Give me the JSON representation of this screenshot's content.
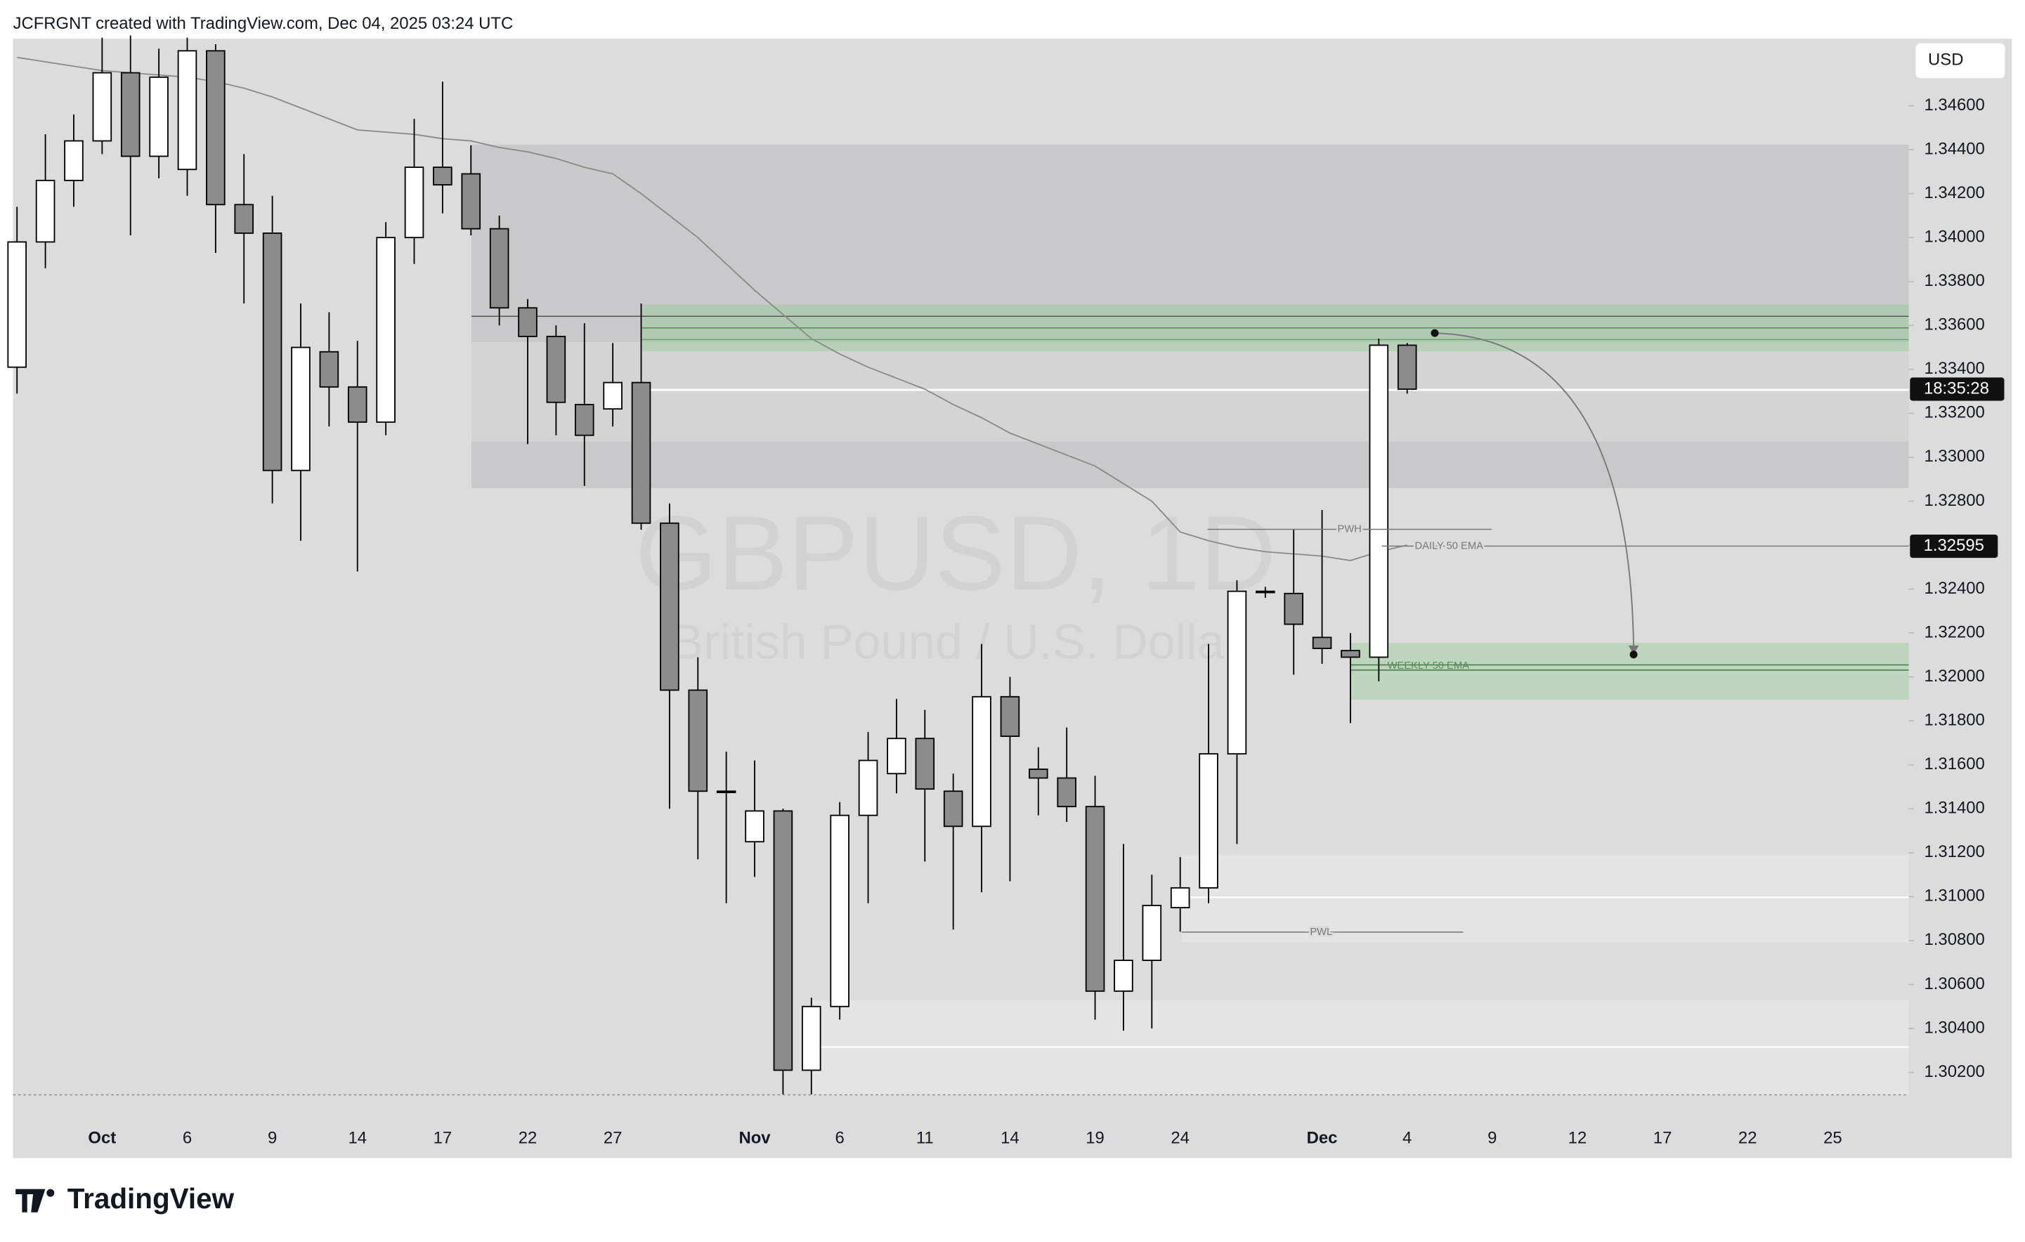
{
  "header": "JCFRGNT created with TradingView.com, Dec 04, 2025 03:24 UTC",
  "brand": "TradingView",
  "chart_data": {
    "type": "candlestick",
    "watermark": "GBPUSD, 1D",
    "subtitle": "British Pound / U.S. Dollar",
    "currency": "USD",
    "categories": [
      null,
      null,
      null,
      "Oct",
      null,
      null,
      "6",
      null,
      null,
      "9",
      null,
      null,
      "14",
      null,
      null,
      "17",
      null,
      null,
      "22",
      null,
      null,
      "27",
      null,
      null,
      null,
      null,
      "Nov",
      null,
      null,
      "6",
      null,
      null,
      "11",
      null,
      null,
      "14",
      null,
      null,
      "19",
      null,
      null,
      "24",
      null,
      null,
      null,
      null,
      "Dec",
      null,
      null,
      "4",
      null,
      null,
      "9",
      null,
      null,
      "12",
      null,
      null,
      "17",
      null,
      null,
      "22",
      null,
      null,
      "25"
    ],
    "open": [
      1.3341,
      1.3398,
      1.3426,
      1.3444,
      1.3475,
      1.3437,
      1.3431,
      1.3485,
      1.3415,
      1.3402,
      1.3294,
      1.3348,
      1.3332,
      1.3316,
      1.34,
      1.3432,
      1.3429,
      1.3404,
      1.3368,
      1.3355,
      1.3324,
      1.3322,
      1.3334,
      1.327,
      1.3194,
      1.3148,
      1.3125,
      1.3139,
      1.3021,
      1.305,
      1.3137,
      1.3156,
      1.3172,
      1.3148,
      1.3132,
      1.3191,
      1.3158,
      1.3154,
      1.3141,
      1.3057,
      1.3071,
      1.3095,
      1.3104,
      1.3165,
      1.3239,
      1.3238,
      1.3218,
      1.3212,
      1.3209,
      1.3351,
      null,
      null,
      null,
      null,
      null,
      null,
      null,
      null,
      null,
      null,
      null,
      null,
      null,
      null,
      null
    ],
    "high": [
      1.3414,
      1.3447,
      1.3456,
      1.3491,
      1.3492,
      1.3486,
      1.3491,
      1.3488,
      1.3438,
      1.3419,
      1.337,
      1.3366,
      1.3353,
      1.3407,
      1.3454,
      1.3471,
      1.3442,
      1.341,
      1.3372,
      1.336,
      1.3361,
      1.3352,
      1.337,
      1.3279,
      1.3209,
      1.3166,
      1.3162,
      1.314,
      1.3054,
      1.3143,
      1.3175,
      1.319,
      1.3185,
      1.3156,
      1.3215,
      1.32,
      1.3168,
      1.3177,
      1.3155,
      1.3124,
      1.311,
      1.3118,
      1.3215,
      1.3244,
      1.3241,
      1.3267,
      1.3276,
      1.322,
      1.3354,
      1.3352,
      null,
      null,
      null,
      null,
      null,
      null,
      null,
      null,
      null,
      null,
      null,
      null,
      null,
      null,
      null
    ],
    "low": [
      1.3329,
      1.3386,
      1.3414,
      1.3438,
      1.3401,
      1.3427,
      1.3419,
      1.3393,
      1.337,
      1.3279,
      1.3262,
      1.3314,
      1.3248,
      1.331,
      1.3388,
      1.3411,
      1.3401,
      1.336,
      1.3306,
      1.331,
      1.3287,
      1.3314,
      1.3267,
      1.314,
      1.3117,
      1.3097,
      1.3109,
      1.301,
      1.301,
      1.3044,
      1.3097,
      1.3147,
      1.3116,
      1.3085,
      1.3102,
      1.3107,
      1.3137,
      1.3134,
      1.3044,
      1.3039,
      1.304,
      1.3084,
      1.3097,
      1.3124,
      1.3236,
      1.3201,
      1.3206,
      1.3179,
      1.3198,
      1.3329,
      null,
      null,
      null,
      null,
      null,
      null,
      null,
      null,
      null,
      null,
      null,
      null,
      null,
      null,
      null
    ],
    "close": [
      1.3398,
      1.3426,
      1.3444,
      1.3475,
      1.3437,
      1.3473,
      1.3485,
      1.3415,
      1.3402,
      1.3294,
      1.335,
      1.3332,
      1.3316,
      1.34,
      1.3432,
      1.3424,
      1.3404,
      1.3368,
      1.3355,
      1.3325,
      1.331,
      1.3334,
      1.327,
      1.3194,
      1.3148,
      1.3148,
      1.3139,
      1.3021,
      1.305,
      1.3137,
      1.3162,
      1.3172,
      1.3149,
      1.3132,
      1.3191,
      1.3173,
      1.3154,
      1.3141,
      1.3057,
      1.3071,
      1.3096,
      1.3104,
      1.3165,
      1.3239,
      1.3239,
      1.3224,
      1.3213,
      1.3209,
      1.3351,
      1.3331,
      null,
      null,
      null,
      null,
      null,
      null,
      null,
      null,
      null,
      null,
      null,
      null,
      null,
      null,
      null
    ],
    "ema": [
      1.3482,
      1.348,
      1.3478,
      1.3476,
      1.3475,
      1.3474,
      1.3473,
      1.3471,
      1.3468,
      1.3464,
      1.3459,
      1.3454,
      1.3449,
      1.3448,
      1.3447,
      1.3445,
      1.3444,
      1.3441,
      1.3439,
      1.3436,
      1.3432,
      1.3429,
      1.342,
      1.341,
      1.34,
      1.3388,
      1.3376,
      1.3365,
      1.3354,
      1.3347,
      1.3341,
      1.3336,
      1.3331,
      1.3324,
      1.3318,
      1.3311,
      1.3306,
      1.3301,
      1.3296,
      1.3288,
      1.328,
      1.3266,
      1.3262,
      1.3259,
      1.3257,
      1.3256,
      1.3255,
      1.3253,
      1.3257,
      1.326,
      null,
      null,
      null,
      null,
      null,
      null,
      null,
      null,
      null,
      null,
      null,
      null,
      null,
      null,
      null
    ],
    "up_color": "#ffffff",
    "down_color": "#8c8c8c",
    "ema_color": "#8a8a8a",
    "ylim": [
      1.30098,
      1.34905
    ],
    "yticks": [
      {
        "value": 1.346,
        "label": "1.34600"
      },
      {
        "value": 1.344,
        "label": "1.34400"
      },
      {
        "value": 1.342,
        "label": "1.34200"
      },
      {
        "value": 1.34,
        "label": "1.34000"
      },
      {
        "value": 1.338,
        "label": "1.33800"
      },
      {
        "value": 1.336,
        "label": "1.33600"
      },
      {
        "value": 1.334,
        "label": "1.33400"
      },
      {
        "value": 1.332,
        "label": "1.33200"
      },
      {
        "value": 1.33,
        "label": "1.33000"
      },
      {
        "value": 1.328,
        "label": "1.32800"
      },
      {
        "value": 1.326,
        "label": "1.32600"
      },
      {
        "value": 1.324,
        "label": "1.32400"
      },
      {
        "value": 1.322,
        "label": "1.32200"
      },
      {
        "value": 1.32,
        "label": "1.32000"
      },
      {
        "value": 1.318,
        "label": "1.31800"
      },
      {
        "value": 1.316,
        "label": "1.31600"
      },
      {
        "value": 1.314,
        "label": "1.31400"
      },
      {
        "value": 1.312,
        "label": "1.31200"
      },
      {
        "value": 1.31,
        "label": "1.31000"
      },
      {
        "value": 1.308,
        "label": "1.30800"
      },
      {
        "value": 1.306,
        "label": "1.30600"
      },
      {
        "value": 1.304,
        "label": "1.30400"
      },
      {
        "value": 1.302,
        "label": "1.30200"
      }
    ],
    "grid": false,
    "countdown": "18:35:28",
    "ema_price": {
      "value": 1.32595,
      "label": "1.32595"
    },
    "annotations": {
      "pwh": "PWH",
      "daily_ema": "DAILY 50 EMA",
      "weekly_ema": "WEEKLY 50 EMA",
      "pwl": "PWL"
    }
  }
}
